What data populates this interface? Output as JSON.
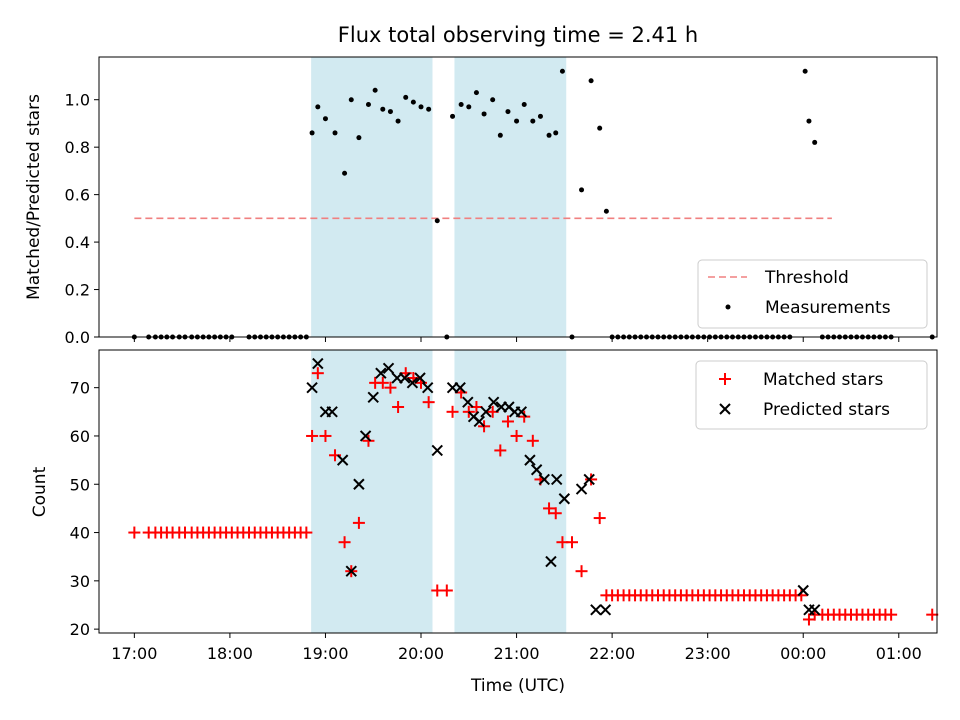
{
  "chart_data": [
    {
      "type": "scatter",
      "title": "Flux total observing time = 2.41 h",
      "xlabel": "",
      "ylabel": "Matched/Predicted stars",
      "xlim": [
        16.63,
        25.4
      ],
      "ylim": [
        0,
        1.18
      ],
      "yticks": [
        0.0,
        0.2,
        0.4,
        0.6,
        0.8,
        1.0
      ],
      "ytick_labels": [
        "0.0",
        "0.2",
        "0.4",
        "0.6",
        "0.8",
        "1.0"
      ],
      "shaded_intervals": [
        [
          18.85,
          20.12
        ],
        [
          20.35,
          21.52
        ]
      ],
      "threshold": {
        "name": "Threshold",
        "value": 0.5,
        "x_range": [
          17.0,
          24.3
        ],
        "color": "#f08080"
      },
      "series": [
        {
          "name": "Measurements",
          "color": "#000000",
          "x": [
            17.0,
            17.15,
            17.22,
            17.28,
            17.34,
            17.4,
            17.47,
            17.53,
            17.6,
            17.66,
            17.72,
            17.78,
            17.84,
            17.9,
            17.96,
            18.02,
            18.2,
            18.26,
            18.32,
            18.38,
            18.44,
            18.5,
            18.56,
            18.62,
            18.68,
            18.74,
            18.8,
            18.86,
            18.92,
            19.0,
            19.1,
            19.2,
            19.27,
            19.35,
            19.45,
            19.52,
            19.6,
            19.68,
            19.76,
            19.84,
            19.92,
            20.0,
            20.08,
            20.17,
            20.27,
            20.33,
            20.42,
            20.5,
            20.58,
            20.66,
            20.75,
            20.83,
            20.91,
            21.0,
            21.08,
            21.17,
            21.25,
            21.34,
            21.41,
            21.48,
            21.58,
            21.68,
            21.78,
            21.87,
            21.94,
            22.0,
            22.06,
            22.12,
            22.18,
            22.24,
            22.3,
            22.36,
            22.42,
            22.48,
            22.54,
            22.6,
            22.66,
            22.72,
            22.78,
            22.84,
            22.9,
            22.96,
            23.02,
            23.08,
            23.14,
            23.2,
            23.26,
            23.32,
            23.38,
            23.44,
            23.5,
            23.56,
            23.62,
            23.68,
            23.74,
            23.8,
            23.86,
            24.02,
            24.06,
            24.12,
            24.2,
            24.26,
            24.32,
            24.38,
            24.44,
            24.5,
            24.56,
            24.62,
            24.68,
            24.74,
            24.8,
            24.86,
            24.92,
            25.35
          ],
          "y": [
            0,
            0,
            0,
            0,
            0,
            0,
            0,
            0,
            0,
            0,
            0,
            0,
            0,
            0,
            0,
            0,
            0,
            0,
            0,
            0,
            0,
            0,
            0,
            0,
            0,
            0,
            0,
            0.86,
            0.97,
            0.92,
            0.86,
            0.69,
            1.0,
            0.84,
            0.98,
            1.04,
            0.96,
            0.95,
            0.91,
            1.01,
            0.99,
            0.97,
            0.96,
            0.49,
            0,
            0.93,
            0.98,
            0.97,
            1.03,
            0.94,
            1.0,
            0.85,
            0.95,
            0.91,
            0.98,
            0.91,
            0.93,
            0.85,
            0.86,
            1.12,
            0,
            0.62,
            1.08,
            0.88,
            0.53,
            0,
            0,
            0,
            0,
            0,
            0,
            0,
            0,
            0,
            0,
            0,
            0,
            0,
            0,
            0,
            0,
            0,
            0,
            0,
            0,
            0,
            0,
            0,
            0,
            0,
            0,
            0,
            0,
            0,
            0,
            0,
            0,
            1.12,
            0.91,
            0.82,
            0,
            0,
            0,
            0,
            0,
            0,
            0,
            0,
            0,
            0,
            0,
            0,
            0,
            0
          ]
        }
      ],
      "legend": [
        "Threshold",
        "Measurements"
      ],
      "legend_position": "lower-right"
    },
    {
      "type": "scatter",
      "title": "",
      "xlabel": "Time (UTC)",
      "ylabel": "Count",
      "xlim": [
        16.63,
        25.4
      ],
      "ylim": [
        19.2,
        77.8
      ],
      "xticks": [
        17,
        18,
        19,
        20,
        21,
        22,
        23,
        24,
        25
      ],
      "xtick_labels": [
        "17:00",
        "18:00",
        "19:00",
        "20:00",
        "21:00",
        "22:00",
        "23:00",
        "00:00",
        "01:00"
      ],
      "yticks": [
        20,
        30,
        40,
        50,
        60,
        70
      ],
      "ytick_labels": [
        "20",
        "30",
        "40",
        "50",
        "60",
        "70"
      ],
      "shaded_intervals": [
        [
          18.85,
          20.12
        ],
        [
          20.35,
          21.52
        ]
      ],
      "series": [
        {
          "name": "Matched stars",
          "marker": "plus",
          "color": "#ff0000",
          "x": [
            17.0,
            17.15,
            17.22,
            17.28,
            17.34,
            17.4,
            17.47,
            17.53,
            17.6,
            17.66,
            17.72,
            17.78,
            17.84,
            17.9,
            17.96,
            18.02,
            18.08,
            18.14,
            18.2,
            18.26,
            18.32,
            18.38,
            18.44,
            18.5,
            18.56,
            18.62,
            18.68,
            18.74,
            18.8,
            18.86,
            18.92,
            19.0,
            19.1,
            19.2,
            19.27,
            19.35,
            19.45,
            19.52,
            19.6,
            19.68,
            19.76,
            19.84,
            19.92,
            20.0,
            20.08,
            20.17,
            20.27,
            20.33,
            20.42,
            20.5,
            20.58,
            20.66,
            20.75,
            20.83,
            20.91,
            21.0,
            21.08,
            21.17,
            21.25,
            21.34,
            21.41,
            21.48,
            21.58,
            21.68,
            21.78,
            21.87,
            21.94,
            22.0,
            22.06,
            22.12,
            22.18,
            22.24,
            22.3,
            22.36,
            22.42,
            22.48,
            22.54,
            22.6,
            22.66,
            22.72,
            22.78,
            22.84,
            22.9,
            22.96,
            23.02,
            23.08,
            23.14,
            23.2,
            23.26,
            23.32,
            23.38,
            23.44,
            23.5,
            23.56,
            23.62,
            23.68,
            23.74,
            23.8,
            23.86,
            23.92,
            23.98,
            24.06,
            24.12,
            24.2,
            24.26,
            24.32,
            24.38,
            24.44,
            24.5,
            24.56,
            24.62,
            24.68,
            24.74,
            24.8,
            24.86,
            24.92,
            25.35
          ],
          "y": [
            40,
            40,
            40,
            40,
            40,
            40,
            40,
            40,
            40,
            40,
            40,
            40,
            40,
            40,
            40,
            40,
            40,
            40,
            40,
            40,
            40,
            40,
            40,
            40,
            40,
            40,
            40,
            40,
            40,
            60,
            73,
            60,
            56,
            38,
            32,
            42,
            59,
            71,
            71,
            70,
            66,
            73,
            72,
            71,
            67,
            28,
            28,
            65,
            69,
            65,
            66,
            62,
            65,
            57,
            63,
            60,
            64,
            59,
            51,
            45,
            44,
            38,
            38,
            32,
            51,
            43,
            27,
            27,
            27,
            27,
            27,
            27,
            27,
            27,
            27,
            27,
            27,
            27,
            27,
            27,
            27,
            27,
            27,
            27,
            27,
            27,
            27,
            27,
            27,
            27,
            27,
            27,
            27,
            27,
            27,
            27,
            27,
            27,
            27,
            27,
            27,
            22,
            23,
            23,
            23,
            23,
            23,
            23,
            23,
            23,
            23,
            23,
            23,
            23,
            23,
            23,
            23
          ]
        },
        {
          "name": "Predicted stars",
          "marker": "x",
          "color": "#000000",
          "x": [
            18.86,
            18.92,
            19.0,
            19.07,
            19.18,
            19.27,
            19.35,
            19.42,
            19.5,
            19.58,
            19.66,
            19.75,
            19.83,
            19.91,
            19.99,
            20.07,
            20.17,
            20.33,
            20.41,
            20.49,
            20.55,
            20.61,
            20.68,
            20.76,
            20.84,
            20.92,
            20.98,
            21.05,
            21.14,
            21.21,
            21.29,
            21.36,
            21.42,
            21.5,
            21.68,
            21.76,
            21.83,
            21.93,
            24.0,
            24.06,
            24.12
          ],
          "y": [
            70,
            75,
            65,
            65,
            55,
            32,
            50,
            60,
            68,
            73,
            74,
            72,
            72,
            71,
            72,
            70,
            57,
            70,
            70,
            67,
            64,
            63,
            65,
            67,
            66,
            66,
            65,
            65,
            55,
            53,
            51,
            34,
            51,
            47,
            49,
            51,
            24,
            24,
            28,
            24,
            24
          ],
          "note": "trailing points near 00:00"
        }
      ],
      "legend": [
        "Matched stars",
        "Predicted stars"
      ],
      "legend_position": "upper-right"
    }
  ]
}
